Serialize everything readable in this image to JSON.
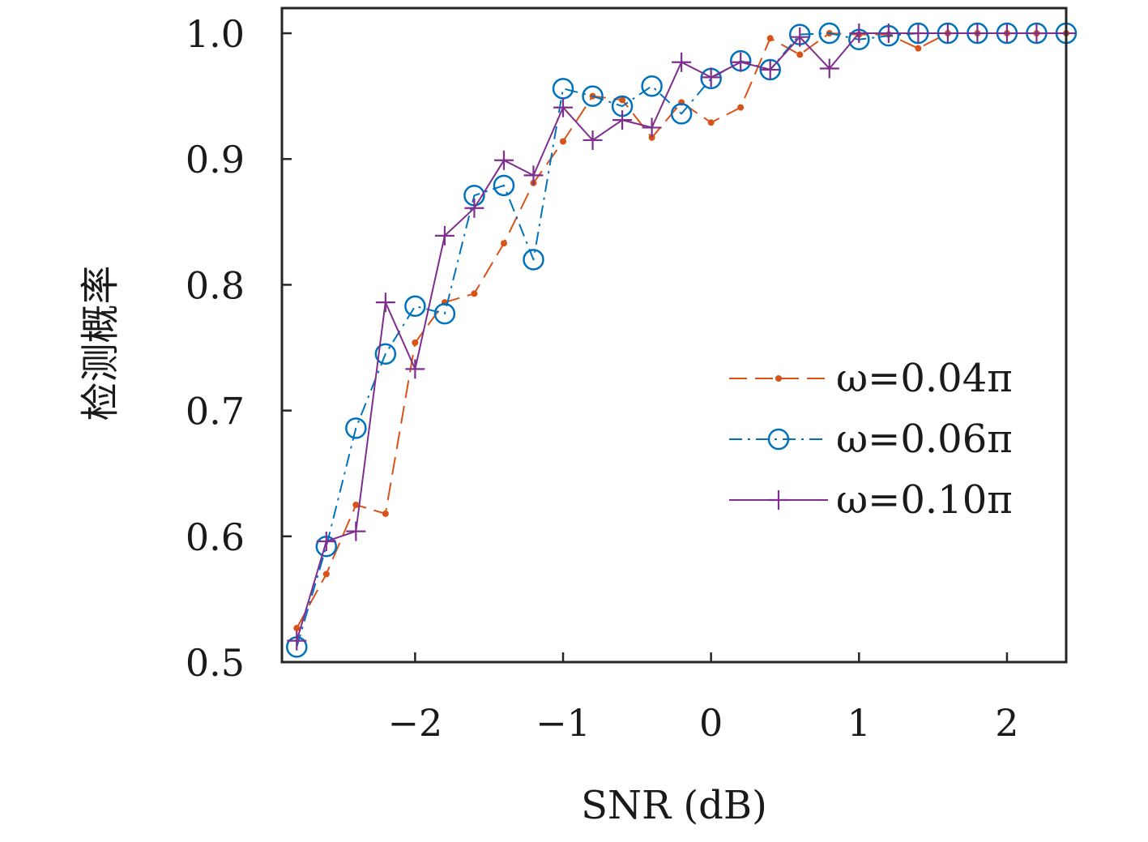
{
  "chart_data": {
    "type": "line",
    "xlabel": "SNR (dB)",
    "ylabel": "检测概率",
    "xlim": [
      -2.9,
      2.4
    ],
    "ylim": [
      0.5,
      1.02
    ],
    "x_ticks": [
      -2,
      -1,
      0,
      1,
      2
    ],
    "x_tick_labels": [
      "−2",
      "−1",
      "0",
      "1",
      "2"
    ],
    "y_ticks": [
      0.5,
      0.6,
      0.7,
      0.8,
      0.9,
      1.0
    ],
    "y_tick_labels": [
      "0.5",
      "0.6",
      "0.7",
      "0.8",
      "0.9",
      "1.0"
    ],
    "grid": false,
    "legend_position": "center-right",
    "x": [
      -2.8,
      -2.6,
      -2.4,
      -2.2,
      -2.0,
      -1.8,
      -1.6,
      -1.4,
      -1.2,
      -1.0,
      -0.8,
      -0.6,
      -0.4,
      -0.2,
      0.0,
      0.2,
      0.4,
      0.6,
      0.8,
      1.0,
      1.2,
      1.4,
      1.6,
      1.8,
      2.0,
      2.2,
      2.4
    ],
    "series": [
      {
        "name": "ω=0.04π",
        "color": "#D95319",
        "line_style": "dashed",
        "marker": "dot",
        "values": [
          0.527,
          0.57,
          0.625,
          0.618,
          0.754,
          0.786,
          0.793,
          0.833,
          0.881,
          0.914,
          0.95,
          0.947,
          0.917,
          0.945,
          0.929,
          0.941,
          0.996,
          0.983,
          1.0,
          0.999,
          0.999,
          0.988,
          1.0,
          1.0,
          1.0,
          1.0,
          1.0
        ]
      },
      {
        "name": "ω=0.06π",
        "color": "#0072BD",
        "line_style": "dashdot",
        "marker": "circle",
        "values": [
          0.512,
          0.592,
          0.686,
          0.745,
          0.783,
          0.777,
          0.871,
          0.879,
          0.82,
          0.956,
          0.95,
          0.942,
          0.958,
          0.936,
          0.964,
          0.978,
          0.971,
          0.999,
          1.0,
          0.995,
          0.998,
          1.0,
          1.0,
          1.0,
          1.0,
          1.0,
          1.0
        ]
      },
      {
        "name": "ω=0.10π",
        "color": "#7E2F8E",
        "line_style": "solid",
        "marker": "plus",
        "values": [
          0.517,
          0.596,
          0.604,
          0.786,
          0.733,
          0.839,
          0.861,
          0.899,
          0.887,
          0.941,
          0.915,
          0.931,
          0.925,
          0.977,
          0.965,
          0.977,
          0.971,
          0.997,
          0.972,
          1.0,
          1.0,
          1.0,
          1.0,
          1.0,
          1.0,
          1.0,
          1.0
        ]
      }
    ]
  }
}
